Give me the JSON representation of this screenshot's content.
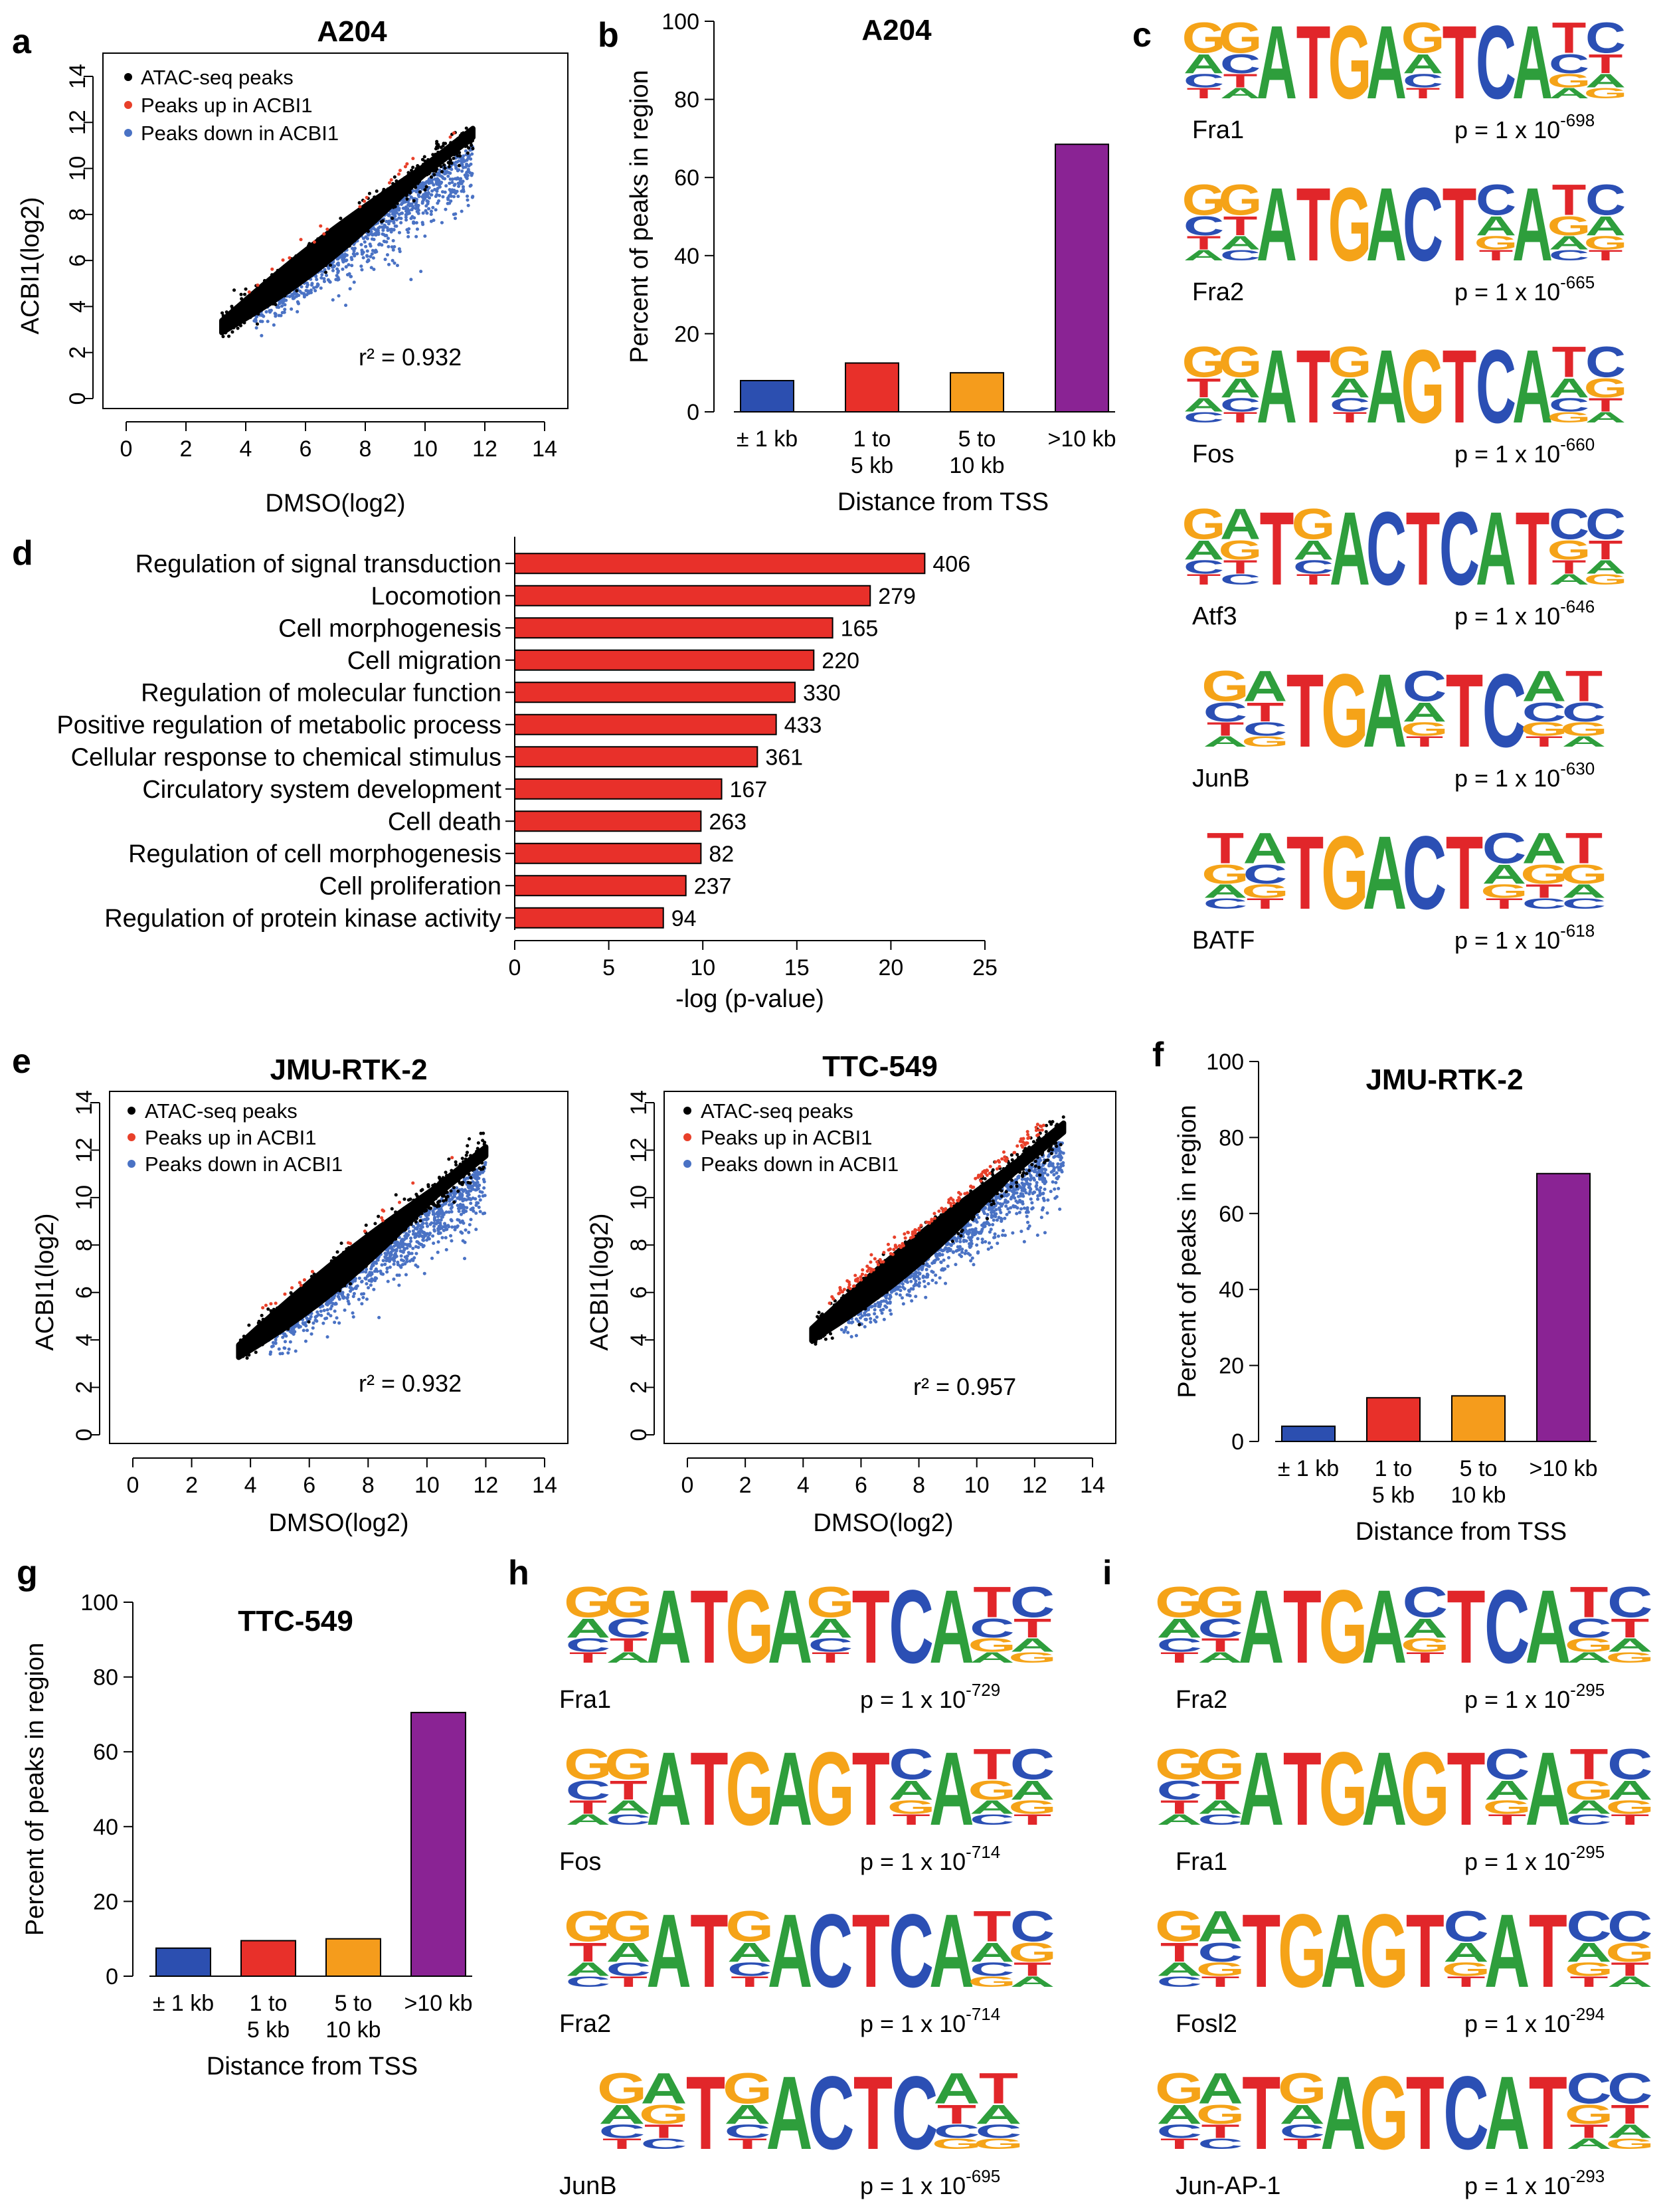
{
  "panels": {
    "a": {
      "label": "a",
      "title": "A204",
      "xlabel": "DMSO(log2)",
      "ylabel": "ACBI1(log2)",
      "ticks": [
        "0",
        "2",
        "4",
        "6",
        "8",
        "10",
        "12",
        "14"
      ],
      "legend": [
        "ATAC-seq peaks",
        "Peaks up in ACBI1",
        "Peaks down in ACBI1"
      ],
      "r2_text": "r² = 0.932"
    },
    "b": {
      "label": "b"
    },
    "c": {
      "label": "c"
    },
    "d": {
      "label": "d"
    },
    "e": {
      "label": "e",
      "left": {
        "title": "JMU-RTK-2",
        "r2_text": "r² = 0.932"
      },
      "right": {
        "title": "TTC-549",
        "r2_text": "r² = 0.957"
      },
      "xlabel": "DMSO(log2)",
      "ylabel": "ACBI1(log2)",
      "ticks": [
        "0",
        "2",
        "4",
        "6",
        "8",
        "10",
        "12",
        "14"
      ],
      "legend": [
        "ATAC-seq peaks",
        "Peaks up in ACBI1",
        "Peaks down in ACBI1"
      ]
    },
    "f": {
      "label": "f"
    },
    "g": {
      "label": "g"
    },
    "h": {
      "label": "h"
    },
    "i": {
      "label": "i"
    }
  },
  "colors": {
    "black_points": "#000000",
    "red_points": "#e8402a",
    "blue_points": "#4a72c4",
    "bar_pm1": "#2c4fb0",
    "bar_1to5": "#e8302a",
    "bar_5to10": "#f59c1c",
    "bar_gt10": "#8a2394",
    "go_bar": "#e8302a",
    "logo_A": "#2e9e3c",
    "logo_C": "#2b4fb4",
    "logo_G": "#f5a318",
    "logo_T": "#e1262a"
  },
  "chart_data": [
    {
      "panel": "a",
      "type": "scatter",
      "title": "A204",
      "xlabel": "DMSO(log2)",
      "ylabel": "ACBI1(log2)",
      "xlim": [
        0,
        14
      ],
      "ylim": [
        0,
        14
      ],
      "series": [
        "ATAC-seq peaks",
        "Peaks up in ACBI1",
        "Peaks down in ACBI1"
      ],
      "cloud": {
        "x_from": 3.2,
        "x_to": 11.6
      },
      "r2": 0.932
    },
    {
      "panel": "b",
      "type": "bar",
      "title": "A204",
      "categories": [
        "± 1 kb",
        "1 to 5 kb",
        "5 to 10 kb",
        ">10 kb"
      ],
      "values": [
        8,
        12.5,
        10,
        68.5
      ],
      "xlabel": "Distance from TSS",
      "ylabel": "Percent of peaks in region",
      "ylim": [
        0,
        100
      ],
      "yticks": [
        "0",
        "20",
        "40",
        "60",
        "80",
        "100"
      ]
    },
    {
      "panel": "d",
      "type": "bar",
      "orientation": "horizontal",
      "categories": [
        "Regulation of signal transduction",
        "Locomotion",
        "Cell morphogenesis",
        "Cell migration",
        "Regulation of molecular function",
        "Positive regulation of metabolic process",
        "Cellular response to chemical stimulus",
        "Circulatory system development",
        "Cell death",
        "Regulation of cell morphogenesis",
        "Cell proliferation",
        "Regulation of protein kinase activity"
      ],
      "values": [
        21.8,
        18.9,
        16.9,
        15.9,
        14.9,
        13.9,
        12.9,
        11.0,
        9.9,
        9.9,
        9.1,
        7.9
      ],
      "labels": [
        "406",
        "279",
        "165",
        "220",
        "330",
        "433",
        "361",
        "167",
        "263",
        "82",
        "237",
        "94"
      ],
      "xlabel": "-log (p-value)",
      "xlim": [
        0,
        25
      ],
      "xticks": [
        "0",
        "5",
        "10",
        "15",
        "20",
        "25"
      ]
    },
    {
      "panel": "e-left",
      "type": "scatter",
      "title": "JMU-RTK-2",
      "xlabel": "DMSO(log2)",
      "ylabel": "ACBI1(log2)",
      "xlim": [
        0,
        14
      ],
      "ylim": [
        0,
        14
      ],
      "series": [
        "ATAC-seq peaks",
        "Peaks up in ACBI1",
        "Peaks down in ACBI1"
      ],
      "cloud": {
        "x_from": 3.6,
        "x_to": 12.0
      },
      "r2": 0.932
    },
    {
      "panel": "e-right",
      "type": "scatter",
      "title": "TTC-549",
      "xlabel": "DMSO(log2)",
      "ylabel": "ACBI1(log2)",
      "xlim": [
        0,
        14
      ],
      "ylim": [
        0,
        14
      ],
      "series": [
        "ATAC-seq peaks",
        "Peaks up in ACBI1",
        "Peaks down in ACBI1"
      ],
      "cloud": {
        "x_from": 4.3,
        "x_to": 13.0
      },
      "r2": 0.957
    },
    {
      "panel": "f",
      "type": "bar",
      "title": "JMU-RTK-2",
      "categories": [
        "± 1 kb",
        "1 to 5 kb",
        "5 to 10 kb",
        ">10 kb"
      ],
      "values": [
        4,
        11.5,
        12,
        70.5
      ],
      "xlabel": "Distance from TSS",
      "ylabel": "Percent of peaks in region",
      "ylim": [
        0,
        100
      ],
      "yticks": [
        "0",
        "20",
        "40",
        "60",
        "80",
        "100"
      ]
    },
    {
      "panel": "g",
      "type": "bar",
      "title": "TTC-549",
      "categories": [
        "± 1 kb",
        "1 to 5 kb",
        "5 to 10 kb",
        ">10 kb"
      ],
      "values": [
        7.5,
        9.5,
        10,
        70.5
      ],
      "xlabel": "Distance from TSS",
      "ylabel": "Percent of peaks in region",
      "ylim": [
        0,
        100
      ],
      "yticks": [
        "0",
        "20",
        "40",
        "60",
        "80",
        "100"
      ]
    }
  ],
  "motifs": {
    "c": [
      {
        "name": "Fra1",
        "p_base": "p = 1 x 10",
        "p_exp": "-698",
        "seq": "GGATGAGTCATC"
      },
      {
        "name": "Fra2",
        "p_base": "p = 1 x 10",
        "p_exp": "-665",
        "seq": "GGATGACTCATC"
      },
      {
        "name": "Fos",
        "p_base": "p = 1 x 10",
        "p_exp": "-660",
        "seq": "GGATGAGTCATC"
      },
      {
        "name": "Atf3",
        "p_base": "p = 1 x 10",
        "p_exp": "-646",
        "seq": "GATGACTCATCC"
      },
      {
        "name": "JunB",
        "p_base": "p = 1 x 10",
        "p_exp": "-630",
        "seq": "GATGACTCAT"
      },
      {
        "name": "BATF",
        "p_base": "p = 1 x 10",
        "p_exp": "-618",
        "seq": "TATGACTCAT"
      }
    ],
    "h": [
      {
        "name": "Fra1",
        "p_base": "p = 1 x 10",
        "p_exp": "-729",
        "seq": "GGATGAGTCATC"
      },
      {
        "name": "Fos",
        "p_base": "p = 1 x 10",
        "p_exp": "-714",
        "seq": "GGATGAGTCATC"
      },
      {
        "name": "Fra2",
        "p_base": "p = 1 x 10",
        "p_exp": "-714",
        "seq": "GGATGACTCATC"
      },
      {
        "name": "JunB",
        "p_base": "p = 1 x 10",
        "p_exp": "-695",
        "seq": "GATGACTCAT"
      }
    ],
    "i": [
      {
        "name": "Fra2",
        "p_base": "p = 1 x 10",
        "p_exp": "-295",
        "seq": "GGATGACTCATC"
      },
      {
        "name": "Fra1",
        "p_base": "p = 1 x 10",
        "p_exp": "-295",
        "seq": "GGATGAGTCATC"
      },
      {
        "name": "Fosl2",
        "p_base": "p = 1 x 10",
        "p_exp": "-294",
        "seq": "GATGAGTCATCC"
      },
      {
        "name": "Jun-AP-1",
        "p_base": "p = 1 x 10",
        "p_exp": "-293",
        "seq": "GATGAGTCATCC"
      }
    ]
  }
}
